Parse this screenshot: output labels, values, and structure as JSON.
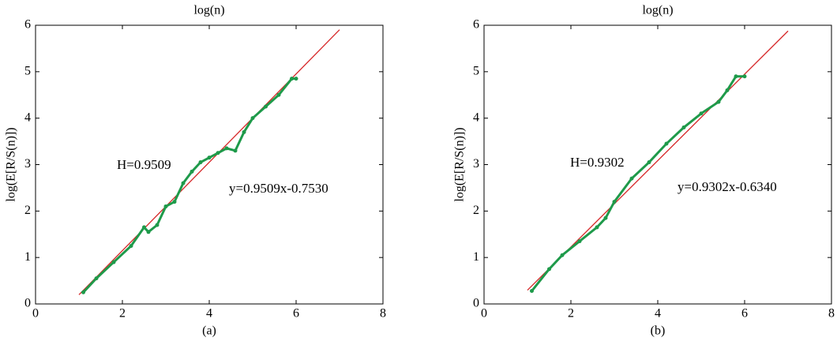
{
  "chart_data": [
    {
      "type": "line",
      "title": "log(n)",
      "caption": "(a)",
      "ylabel": "log(E[R/S(n)])",
      "annotations": [
        "H=0.9509",
        "y=0.9509x-0.7530"
      ],
      "xlim": [
        0,
        8
      ],
      "xticks": [
        0,
        2,
        4,
        6,
        8
      ],
      "ylim": [
        0,
        6
      ],
      "yticks": [
        0,
        1,
        2,
        3,
        4,
        5,
        6
      ],
      "series": [
        {
          "color": "#d62728",
          "x": [
            1,
            7
          ],
          "values": [
            0.198,
            5.903
          ]
        },
        {
          "color": "#1e9a4a",
          "x": [
            1.1,
            1.4,
            1.8,
            2.2,
            2.5,
            2.6,
            2.8,
            3.0,
            3.2,
            3.4,
            3.6,
            3.8,
            4.0,
            4.2,
            4.4,
            4.6,
            4.8,
            5.0,
            5.3,
            5.6,
            5.9,
            6.0
          ],
          "values": [
            0.25,
            0.55,
            0.9,
            1.25,
            1.65,
            1.55,
            1.7,
            2.1,
            2.2,
            2.6,
            2.85,
            3.05,
            3.15,
            3.25,
            3.35,
            3.3,
            3.7,
            4.0,
            4.25,
            4.5,
            4.85,
            4.85
          ]
        }
      ]
    },
    {
      "type": "line",
      "title": "log(n)",
      "caption": "(b)",
      "ylabel": "log(E[R/S(n)])",
      "annotations": [
        "H=0.9302",
        "y=0.9302x-0.6340"
      ],
      "xlim": [
        0,
        8
      ],
      "xticks": [
        0,
        2,
        4,
        6,
        8
      ],
      "ylim": [
        0,
        6
      ],
      "yticks": [
        0,
        1,
        2,
        3,
        4,
        5,
        6
      ],
      "series": [
        {
          "color": "#d62728",
          "x": [
            1,
            7
          ],
          "values": [
            0.296,
            5.877
          ]
        },
        {
          "color": "#1e9a4a",
          "x": [
            1.1,
            1.5,
            1.8,
            2.2,
            2.6,
            2.8,
            3.0,
            3.4,
            3.8,
            4.2,
            4.6,
            5.0,
            5.4,
            5.6,
            5.8,
            6.0
          ],
          "values": [
            0.28,
            0.75,
            1.05,
            1.35,
            1.65,
            1.85,
            2.2,
            2.7,
            3.05,
            3.45,
            3.8,
            4.1,
            4.35,
            4.6,
            4.9,
            4.9
          ]
        }
      ]
    }
  ]
}
